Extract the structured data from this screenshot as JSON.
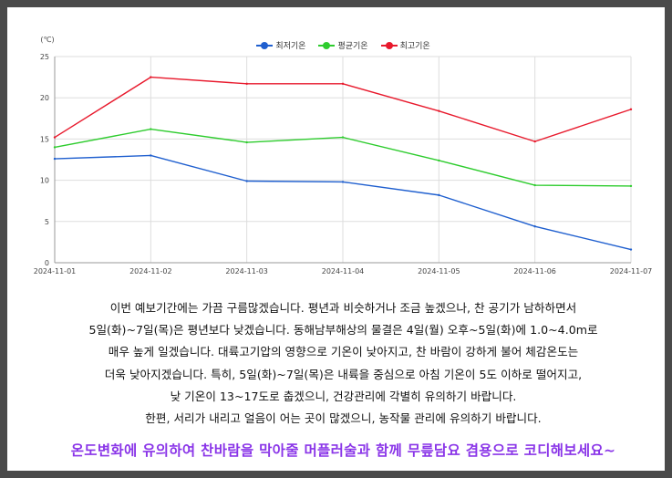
{
  "chart_data": {
    "type": "line",
    "y_unit_label": "(℃)",
    "categories": [
      "2024-11-01",
      "2024-11-02",
      "2024-11-03",
      "2024-11-04",
      "2024-11-05",
      "2024-11-06",
      "2024-11-07"
    ],
    "ylim": [
      0,
      25
    ],
    "yticks": [
      "0",
      "5",
      "10",
      "15",
      "20",
      "25"
    ],
    "grid": true,
    "legend_position": "top-center",
    "series": [
      {
        "name": "최저기온",
        "color": "#1f5fcf",
        "values": [
          12.6,
          13.0,
          9.9,
          9.8,
          8.2,
          4.4,
          1.6
        ]
      },
      {
        "name": "평균기온",
        "color": "#2ecc2e",
        "values": [
          14.0,
          16.2,
          14.6,
          15.2,
          12.4,
          9.4,
          9.3
        ]
      },
      {
        "name": "최고기온",
        "color": "#e8192c",
        "values": [
          15.2,
          22.5,
          21.7,
          21.7,
          18.4,
          14.7,
          18.6
        ]
      }
    ]
  },
  "forecast": {
    "lines": [
      "이번 예보기간에는 가끔 구름많겠습니다. 평년과 비슷하거나 조금 높겠으나, 찬 공기가 남하하면서",
      "5일(화)~7일(목)은 평년보다 낮겠습니다. 동해남부해상의 물결은 4일(월) 오후~5일(화)에 1.0~4.0m로",
      "매우 높게 일겠습니다. 대륙고기압의 영향으로 기온이 낮아지고, 찬 바람이 강하게 불어 체감온도는",
      "더욱 낮아지겠습니다. 특히, 5일(화)~7일(목)은 내륙을 중심으로 아침 기온이 5도 이하로 떨어지고,",
      "낮 기온이 13~17도로 춥겠으니, 건강관리에 각별히 유의하기 바랍니다.",
      "한편, 서리가 내리고 얼음이 어는 곳이 많겠으니, 농작물 관리에 유의하기 바랍니다."
    ],
    "tagline": "온도변화에 유의하여 찬바람을 막아줄 머플러술과 함께 무릎담요 겸용으로 코디해보세요~"
  }
}
